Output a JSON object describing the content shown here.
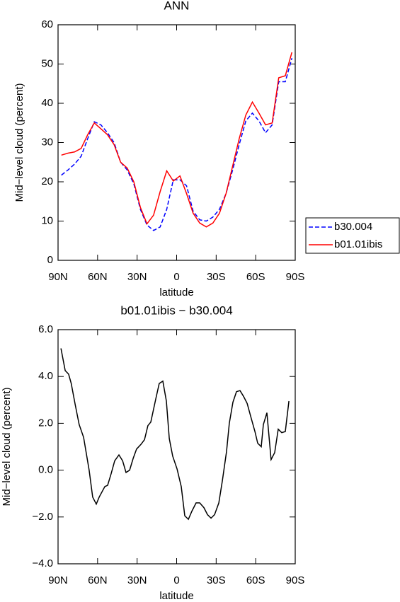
{
  "chart_data": [
    {
      "type": "line",
      "title": "ANN",
      "xlabel": "latitude",
      "ylabel": "Mid−level cloud (percent)",
      "x": [
        87.5,
        82.5,
        77.5,
        72.5,
        67.5,
        62.5,
        57.5,
        52.5,
        47.5,
        42.5,
        37.5,
        32.5,
        27.5,
        22.5,
        17.5,
        12.5,
        7.5,
        2.5,
        -2.5,
        -7.5,
        -12.5,
        -17.5,
        -22.5,
        -27.5,
        -32.5,
        -37.5,
        -42.5,
        -47.5,
        -52.5,
        -57.5,
        -62.5,
        -67.5,
        -72.5,
        -77.5,
        -82.5,
        -87.5
      ],
      "series": [
        {
          "name": "b30.004",
          "color": "#0000ff",
          "line_style": "dashed",
          "values": [
            21.7,
            23,
            24.5,
            26.5,
            31,
            35.3,
            34.5,
            32.5,
            30,
            25,
            23,
            19.5,
            13,
            9,
            7.6,
            8.5,
            13,
            20.5,
            20.5,
            19,
            12.5,
            10.3,
            10,
            11,
            13,
            17,
            23,
            29.5,
            35.5,
            37.5,
            35.5,
            32.5,
            34.5,
            45.5,
            45.5,
            51.5
          ]
        },
        {
          "name": "b01.01ibis",
          "color": "#ff0000",
          "line_style": "solid",
          "values": [
            26.8,
            27.3,
            27.6,
            28.5,
            32,
            35,
            33.5,
            32,
            29.5,
            25,
            23.5,
            20,
            13.5,
            9.3,
            11.5,
            17.5,
            22.8,
            20.2,
            21.5,
            17,
            12,
            9.5,
            8.5,
            9.5,
            12,
            17,
            24,
            31,
            37,
            40.3,
            37.5,
            34.5,
            35,
            46.5,
            47,
            53
          ]
        }
      ],
      "xlim": [
        90,
        -90
      ],
      "xticks": [
        {
          "value": 90,
          "label": "90N"
        },
        {
          "value": 60,
          "label": "60N"
        },
        {
          "value": 30,
          "label": "30N"
        },
        0,
        {
          "value": -30,
          "label": "30S"
        },
        {
          "value": -60,
          "label": "60S"
        },
        {
          "value": -90,
          "label": "90S"
        }
      ],
      "ylim": [
        0,
        60
      ],
      "yticks": [
        0,
        10,
        20,
        30,
        40,
        50,
        60
      ],
      "legend": "right"
    },
    {
      "type": "line",
      "title": "b01.01ibis − b30.004",
      "xlabel": "latitude",
      "ylabel": "Mid−level cloud (percent)",
      "x": [
        87.8,
        84.6,
        82,
        80,
        77,
        74,
        70.6,
        66.4,
        63.7,
        61,
        58.8,
        54.5,
        52.4,
        49.7,
        47,
        43.8,
        41,
        38.4,
        35.7,
        33,
        30.4,
        27.1,
        24.4,
        21.8,
        19.6,
        15.8,
        13.2,
        10.5,
        7.8,
        5.6,
        3,
        -0.3,
        -3.5,
        -6.2,
        -8.9,
        -11.6,
        -14.8,
        -17.5,
        -20.7,
        -23.4,
        -26.1,
        -28.8,
        -32,
        -34.7,
        -37.9,
        -40,
        -42.7,
        -45.4,
        -48.1,
        -50.8,
        -53.5,
        -56.7,
        -59.4,
        -61.5,
        -64.2,
        -65.8,
        -68.5,
        -71.7,
        -74.4,
        -77.1,
        -79.8,
        -82.5,
        -85.2
      ],
      "series": [
        {
          "name": null,
          "color": "#000000",
          "line_style": "solid",
          "values": [
            5.2,
            4.25,
            4.1,
            3.7,
            2.8,
            1.95,
            1.4,
            0,
            -1.15,
            -1.45,
            -1.15,
            -0.7,
            -0.65,
            -0.15,
            0.4,
            0.65,
            0.4,
            -0.1,
            0,
            0.5,
            0.9,
            1.1,
            1.3,
            1.9,
            2.05,
            3.05,
            3.7,
            3.8,
            2.95,
            1.35,
            0.6,
            0.05,
            -0.7,
            -1.95,
            -2.1,
            -1.75,
            -1.4,
            -1.4,
            -1.6,
            -1.9,
            -2.05,
            -1.9,
            -1.4,
            -0.45,
            0.8,
            2.0,
            2.9,
            3.35,
            3.4,
            3.15,
            2.85,
            2.2,
            1.65,
            1.15,
            1.0,
            1.95,
            2.45,
            0.45,
            0.75,
            1.75,
            1.6,
            1.65,
            2.95
          ]
        }
      ],
      "xlim": [
        90,
        -90
      ],
      "xticks": [
        {
          "value": 90,
          "label": "90N"
        },
        {
          "value": 60,
          "label": "60N"
        },
        {
          "value": 30,
          "label": "30N"
        },
        0,
        {
          "value": -30,
          "label": "30S"
        },
        {
          "value": -60,
          "label": "60S"
        },
        {
          "value": -90,
          "label": "90S"
        }
      ],
      "ylim": [
        -4,
        6
      ],
      "yticks": [
        {
          "value": -4,
          "label": "−4.0"
        },
        {
          "value": -2,
          "label": "−2.0"
        },
        {
          "value": 0,
          "label": "0.0"
        },
        {
          "value": 2,
          "label": "2.0"
        },
        {
          "value": 4,
          "label": "4.0"
        },
        {
          "value": 6,
          "label": "6.0"
        }
      ]
    }
  ]
}
